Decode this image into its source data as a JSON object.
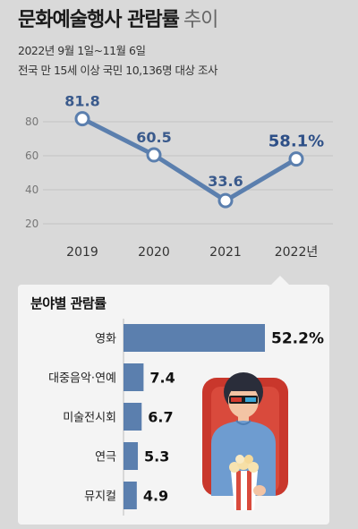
{
  "title": {
    "main": "문화예술행사 관람률",
    "sub": "추이"
  },
  "subtitle_lines": [
    "2022년 9월 1일~11월 6일",
    "전국 만 15세 이상 국민 10,136명 대상 조사"
  ],
  "chart_data": [
    {
      "type": "line",
      "x": [
        "2019",
        "2020",
        "2021",
        "2022년"
      ],
      "series": [
        {
          "values": [
            81.8,
            60.5,
            33.6,
            58.1
          ]
        }
      ],
      "data_labels": [
        "81.8",
        "60.5",
        "33.6",
        "58.1%"
      ],
      "yticks": [
        "80",
        "60",
        "40",
        "20"
      ],
      "ylim": [
        15,
        90
      ],
      "grid": true,
      "color": "#5b7fae"
    },
    {
      "type": "bar",
      "orientation": "horizontal",
      "title": "분야별 관람률",
      "categories": [
        "영화",
        "대중음악·연예",
        "미술전시회",
        "연극",
        "뮤지컬"
      ],
      "values": [
        52.2,
        7.4,
        6.7,
        5.3,
        4.9
      ],
      "data_labels": [
        "52.2%",
        "7.4",
        "6.7",
        "5.3",
        "4.9"
      ],
      "color": "#5b7fae"
    }
  ],
  "colors": {
    "accent": "#5b7fae",
    "title_accent": "#2d4f87",
    "background": "#d9d9d9",
    "panel": "#f4f4f4"
  },
  "illustration": "person-3d-glasses-popcorn-icon"
}
